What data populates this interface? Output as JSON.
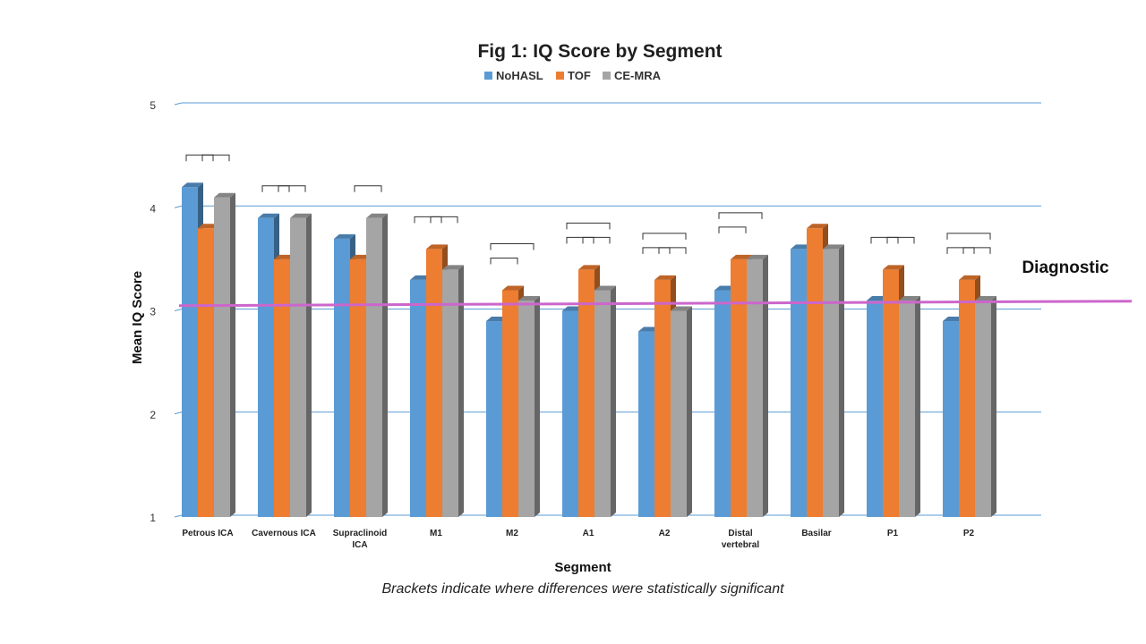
{
  "chart_data": {
    "type": "bar",
    "title": "Fig 1: IQ Score by Segment",
    "xlabel": "Segment",
    "ylabel": "Mean IQ Score",
    "ylim": [
      1,
      5
    ],
    "yticks": [
      1,
      2,
      3,
      4,
      5
    ],
    "categories": [
      [
        "Petrous ICA"
      ],
      [
        "Cavernous ICA"
      ],
      [
        "Supraclinoid",
        "ICA"
      ],
      [
        "M1"
      ],
      [
        "M2"
      ],
      [
        "A1"
      ],
      [
        "A2"
      ],
      [
        "Distal",
        "vertebral"
      ],
      [
        "Basilar"
      ],
      [
        "P1"
      ],
      [
        "P2"
      ]
    ],
    "series": [
      {
        "name": "NoHASL",
        "color": "#5b9bd5",
        "values": [
          4.2,
          3.9,
          3.7,
          3.3,
          2.9,
          3.0,
          2.8,
          3.2,
          3.6,
          3.1,
          2.9
        ]
      },
      {
        "name": "TOF",
        "color": "#ed7d31",
        "values": [
          3.8,
          3.5,
          3.5,
          3.6,
          3.2,
          3.4,
          3.3,
          3.5,
          3.8,
          3.4,
          3.3
        ]
      },
      {
        "name": "CE-MRA",
        "color": "#a5a5a5",
        "values": [
          4.1,
          3.9,
          3.9,
          3.4,
          3.1,
          3.2,
          3.0,
          3.5,
          3.6,
          3.1,
          3.1
        ]
      }
    ],
    "significance_brackets": [
      {
        "category": 0,
        "pairs": [
          [
            0,
            1
          ],
          [
            1,
            2
          ]
        ]
      },
      {
        "category": 1,
        "pairs": [
          [
            0,
            1
          ],
          [
            1,
            2
          ]
        ]
      },
      {
        "category": 2,
        "pairs": [
          [
            1,
            2
          ]
        ]
      },
      {
        "category": 3,
        "pairs": [
          [
            0,
            1
          ],
          [
            1,
            2
          ]
        ]
      },
      {
        "category": 4,
        "pairs": [
          [
            0,
            1
          ],
          [
            0,
            2
          ]
        ]
      },
      {
        "category": 5,
        "pairs": [
          [
            0,
            1
          ],
          [
            1,
            2
          ],
          [
            0,
            2
          ]
        ]
      },
      {
        "category": 6,
        "pairs": [
          [
            0,
            1
          ],
          [
            1,
            2
          ],
          [
            0,
            2
          ]
        ]
      },
      {
        "category": 7,
        "pairs": [
          [
            0,
            1
          ],
          [
            0,
            2
          ]
        ]
      },
      {
        "category": 9,
        "pairs": [
          [
            0,
            1
          ],
          [
            1,
            2
          ]
        ]
      },
      {
        "category": 10,
        "pairs": [
          [
            0,
            1
          ],
          [
            1,
            2
          ],
          [
            0,
            2
          ]
        ]
      }
    ],
    "reference_line": {
      "label": "Diagnostic",
      "value": 3.05,
      "color": "#cc66cc"
    },
    "footnote": "Brackets indicate where differences were statistically significant",
    "legend_position": "top-center",
    "grid": true
  }
}
